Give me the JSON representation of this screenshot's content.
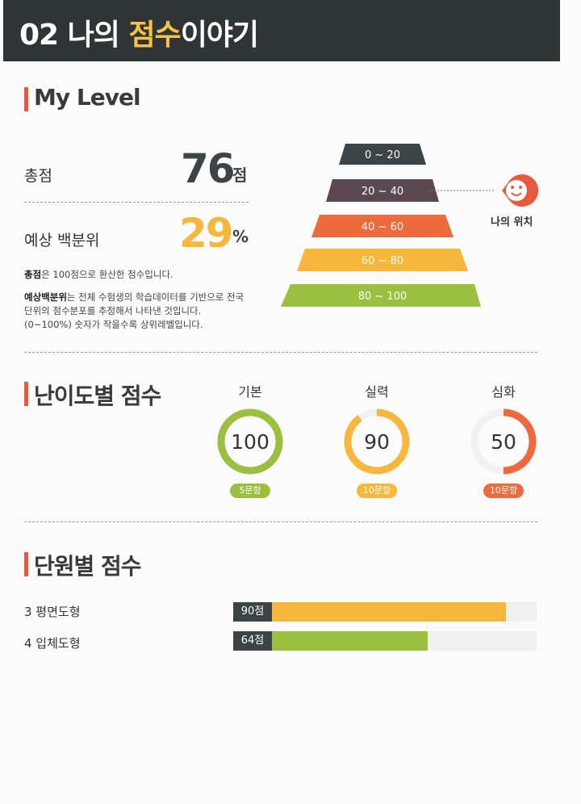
{
  "header": {
    "number": "02",
    "title_pre": "나의 ",
    "title_accent": "점수",
    "title_post": "이야기"
  },
  "my_level": {
    "title": "My Level",
    "total_label": "총점",
    "total_value": "76",
    "total_unit": "점",
    "percentile_label": "예상 백분위",
    "percentile_value": "29",
    "percentile_unit": "%",
    "note1_bold": "총점",
    "note1_rest": "은 100점으로 환산한 점수입니다.",
    "note2_bold": "예상백분위",
    "note2_rest": "는 전체 수험생의 학습데이터를 기반으로 전국단위의 점수분포를 추정해서 나타낸 것입니다. (0~100%) 숫자가 작을수록 상위레벨입니다.",
    "pyramid": [
      {
        "label": "0 ~ 20",
        "color": "#3c4448"
      },
      {
        "label": "20 ~ 40",
        "color": "#5b4850"
      },
      {
        "label": "40 ~ 60",
        "color": "#ed6a3d"
      },
      {
        "label": "60 ~ 80",
        "color": "#f6b73c"
      },
      {
        "label": "80 ~ 100",
        "color": "#9bbf3f"
      }
    ],
    "my_position_label": "나의 위치"
  },
  "difficulty": {
    "title": "난이도별 점수",
    "items": [
      {
        "name": "기본",
        "score": "100",
        "fraction": 1.0,
        "count": "5문항",
        "color": "#9bbf3f"
      },
      {
        "name": "실력",
        "score": "90",
        "fraction": 0.9,
        "count": "10문항",
        "color": "#f6b73c"
      },
      {
        "name": "심화",
        "score": "50",
        "fraction": 0.5,
        "count": "10문항",
        "color": "#ed6a3d"
      }
    ]
  },
  "units": {
    "title": "단원별 점수",
    "items": [
      {
        "name": "3 평면도형",
        "score_label": "90점",
        "score": 90,
        "color": "#f6b73c"
      },
      {
        "name": "4 입체도형",
        "score_label": "64점",
        "score": 64,
        "color": "#9bbf3f"
      }
    ]
  },
  "colors": {
    "accent": "#f6c244",
    "section_bar": "#e85a3d",
    "dark": "#2f3437"
  }
}
